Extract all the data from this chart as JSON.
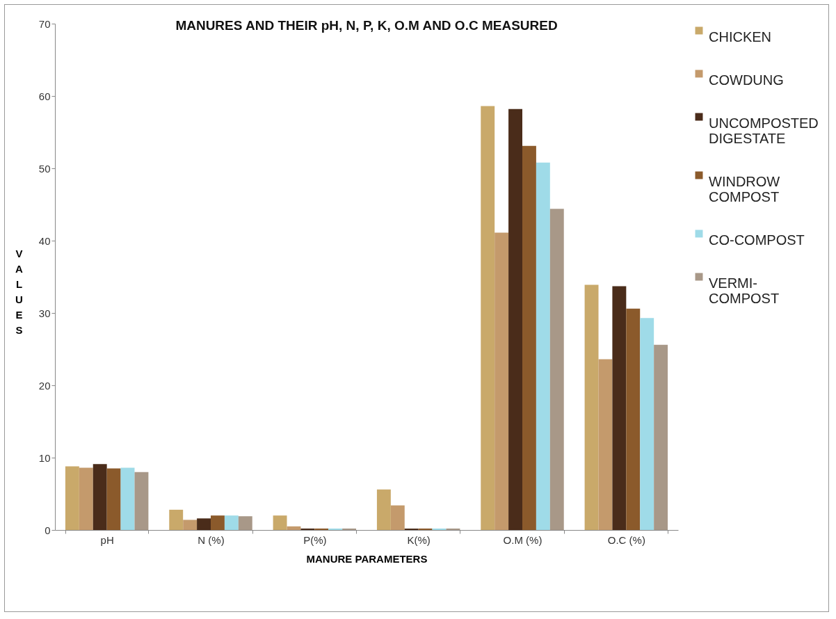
{
  "chart_data": {
    "type": "bar",
    "title": "MANURES AND THEIR pH, N, P, K, O.M AND O.C MEASURED",
    "xlabel": "MANURE PARAMETERS",
    "ylabel": "VALUES",
    "categories": [
      "pH",
      "N (%)",
      "P(%)",
      "K(%)",
      "O.M (%)",
      "O.C (%)"
    ],
    "series": [
      {
        "name": "CHICKEN",
        "color": "#c9a96a",
        "values": [
          8.8,
          2.8,
          2.0,
          5.6,
          58.6,
          33.9
        ]
      },
      {
        "name": "COWDUNG",
        "color": "#c49a6c",
        "values": [
          8.6,
          1.4,
          0.5,
          3.4,
          41.1,
          23.6
        ]
      },
      {
        "name": "UNCOMPOSTED DIGESTATE",
        "color": "#4a2c1a",
        "values": [
          9.1,
          1.6,
          0.2,
          0.2,
          58.2,
          33.7
        ]
      },
      {
        "name": "WINDROW COMPOST",
        "color": "#8b5a2b",
        "values": [
          8.5,
          2.0,
          0.2,
          0.2,
          53.1,
          30.6
        ]
      },
      {
        "name": "CO-COMPOST",
        "color": "#9fdbe8",
        "values": [
          8.6,
          2.0,
          0.2,
          0.2,
          50.8,
          29.3
        ]
      },
      {
        "name": "VERMI-COMPOST",
        "color": "#a89888",
        "values": [
          8.0,
          1.9,
          0.2,
          0.2,
          44.4,
          25.6
        ]
      }
    ],
    "ylim": [
      0,
      70
    ],
    "yticks": [
      0,
      10,
      20,
      30,
      40,
      50,
      60,
      70
    ],
    "grid": false,
    "legend": "right"
  }
}
